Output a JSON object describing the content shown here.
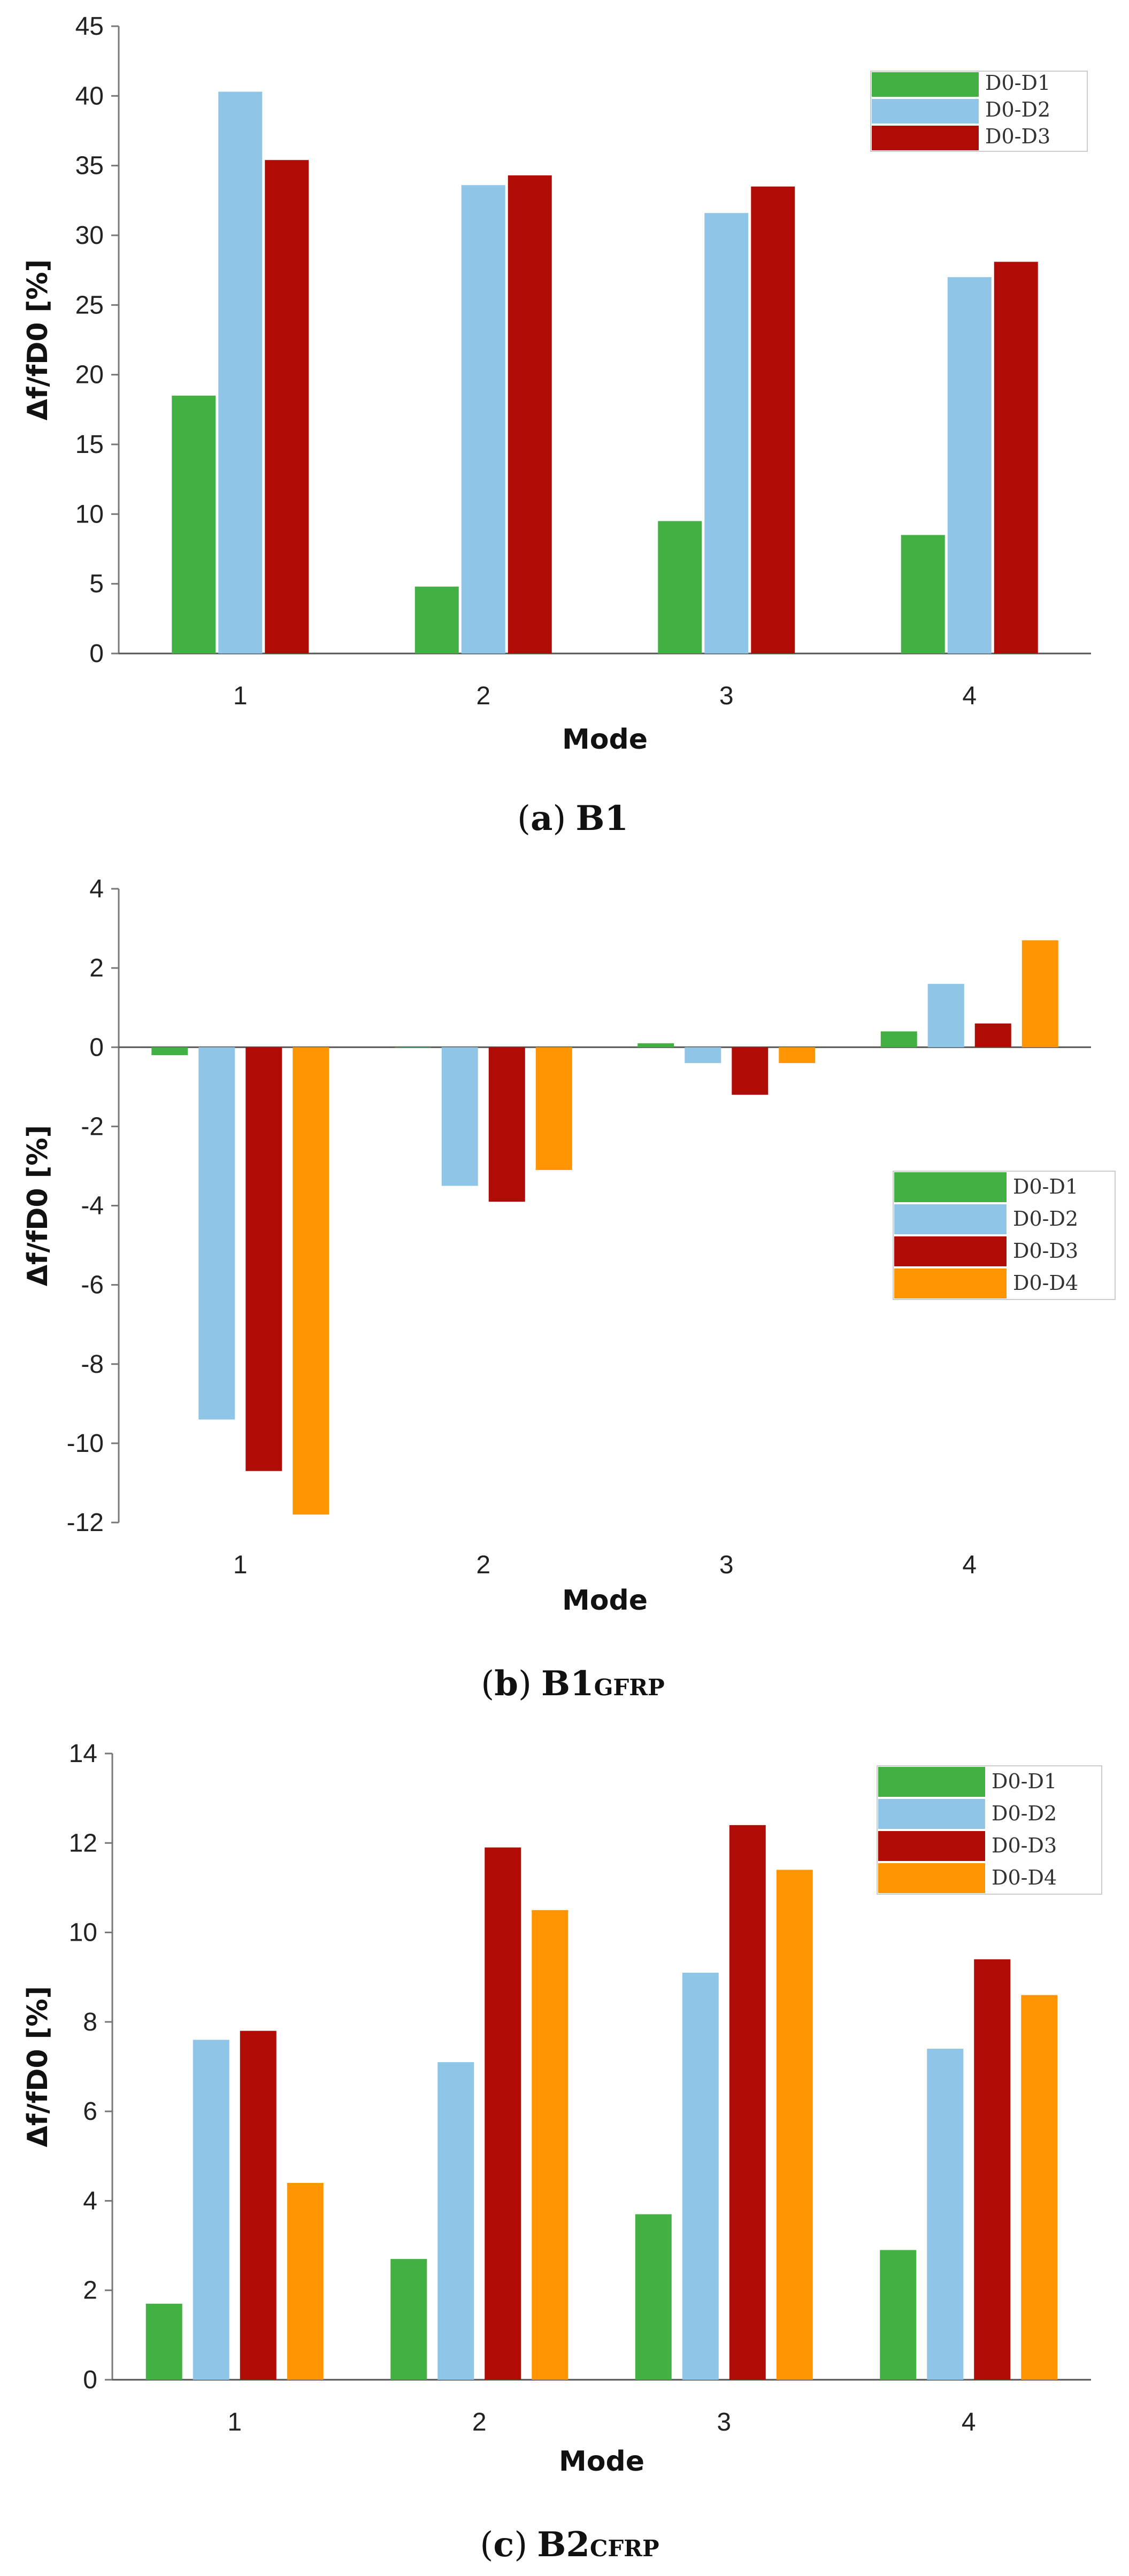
{
  "colors": {
    "D0-D1": "#43b043",
    "D0-D2": "#8fc6e8",
    "D0-D3": "#b00c06",
    "D0-D4": "#ff9500"
  },
  "chart_data": [
    {
      "type": "bar",
      "categories": [
        "1",
        "2",
        "3",
        "4"
      ],
      "xlabel": "Mode",
      "ylabel": "Δf/fD0 [%]",
      "ylim": [
        0,
        45
      ],
      "yticks": [
        0,
        5,
        10,
        15,
        20,
        25,
        30,
        35,
        40,
        45
      ],
      "grid": false,
      "legend_position": "top-right",
      "series": [
        {
          "name": "D0-D1",
          "values": [
            18.5,
            4.8,
            9.5,
            8.5
          ]
        },
        {
          "name": "D0-D2",
          "values": [
            40.3,
            33.6,
            31.6,
            27.0
          ]
        },
        {
          "name": "D0-D3",
          "values": [
            35.4,
            34.3,
            33.5,
            28.1
          ]
        }
      ],
      "caption": {
        "open": "(",
        "letter": "a",
        "close": ")",
        "name": "B1",
        "sub": ""
      }
    },
    {
      "type": "bar",
      "categories": [
        "1",
        "2",
        "3",
        "4"
      ],
      "xlabel": "Mode",
      "ylabel": "Δf/fD0 [%]",
      "ylim": [
        -12,
        4
      ],
      "yticks": [
        -12,
        -10,
        -8,
        -6,
        -4,
        -2,
        0,
        2,
        4
      ],
      "grid": false,
      "legend_position": "right",
      "series": [
        {
          "name": "D0-D1",
          "values": [
            -0.2,
            0.0,
            0.1,
            0.4
          ]
        },
        {
          "name": "D0-D2",
          "values": [
            -9.4,
            -3.5,
            -0.4,
            1.6
          ]
        },
        {
          "name": "D0-D3",
          "values": [
            -10.7,
            -3.9,
            -1.2,
            0.6
          ]
        },
        {
          "name": "D0-D4",
          "values": [
            -11.8,
            -3.1,
            -0.4,
            2.7
          ]
        }
      ],
      "caption": {
        "open": "(",
        "letter": "b",
        "close": ")",
        "name": "B1",
        "sub": "GFRP"
      }
    },
    {
      "type": "bar",
      "categories": [
        "1",
        "2",
        "3",
        "4"
      ],
      "xlabel": "Mode",
      "ylabel": "Δf/fD0 [%]",
      "ylim": [
        0,
        14
      ],
      "yticks": [
        0,
        2,
        4,
        6,
        8,
        10,
        12,
        14
      ],
      "grid": false,
      "legend_position": "top-right",
      "series": [
        {
          "name": "D0-D1",
          "values": [
            1.7,
            2.7,
            3.7,
            2.9
          ]
        },
        {
          "name": "D0-D2",
          "values": [
            7.6,
            7.1,
            9.1,
            7.4
          ]
        },
        {
          "name": "D0-D3",
          "values": [
            7.8,
            11.9,
            12.4,
            9.4
          ]
        },
        {
          "name": "D0-D4",
          "values": [
            4.4,
            10.5,
            11.4,
            8.6
          ]
        }
      ],
      "caption": {
        "open": "(",
        "letter": "c",
        "close": ")",
        "name": "B2",
        "sub": "CFRP"
      }
    }
  ]
}
